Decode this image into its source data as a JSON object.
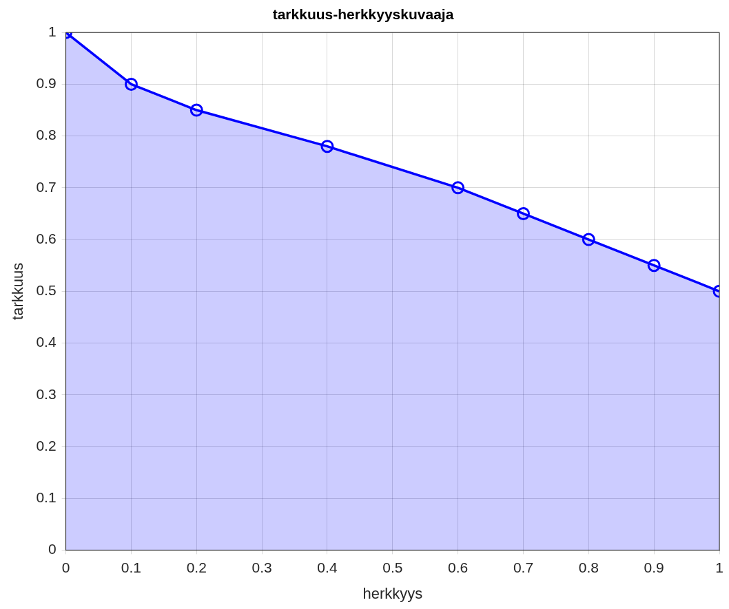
{
  "chart_data": {
    "type": "area",
    "title": "tarkkuus-herkkyyskuvaaja",
    "xlabel": "herkkyys",
    "ylabel": "tarkkuus",
    "x": [
      0,
      0.1,
      0.2,
      0.4,
      0.6,
      0.7,
      0.8,
      0.9,
      1
    ],
    "series": [
      {
        "color": "#0000ff",
        "values": [
          1,
          0.9,
          0.85,
          0.78,
          0.7,
          0.65,
          0.6,
          0.55,
          0.5
        ]
      }
    ],
    "xlim": [
      0,
      1
    ],
    "xticks": [
      0,
      0.1,
      0.2,
      0.3,
      0.4,
      0.5,
      0.6,
      0.7,
      0.8,
      0.9,
      1
    ],
    "ylim": [
      0,
      1
    ],
    "yticks": [
      0,
      0.1,
      0.2,
      0.3,
      0.4,
      0.5,
      0.6,
      0.7,
      0.8,
      0.9,
      1
    ],
    "grid": true,
    "marker": "circle",
    "line_style": "solid",
    "legend": false
  }
}
